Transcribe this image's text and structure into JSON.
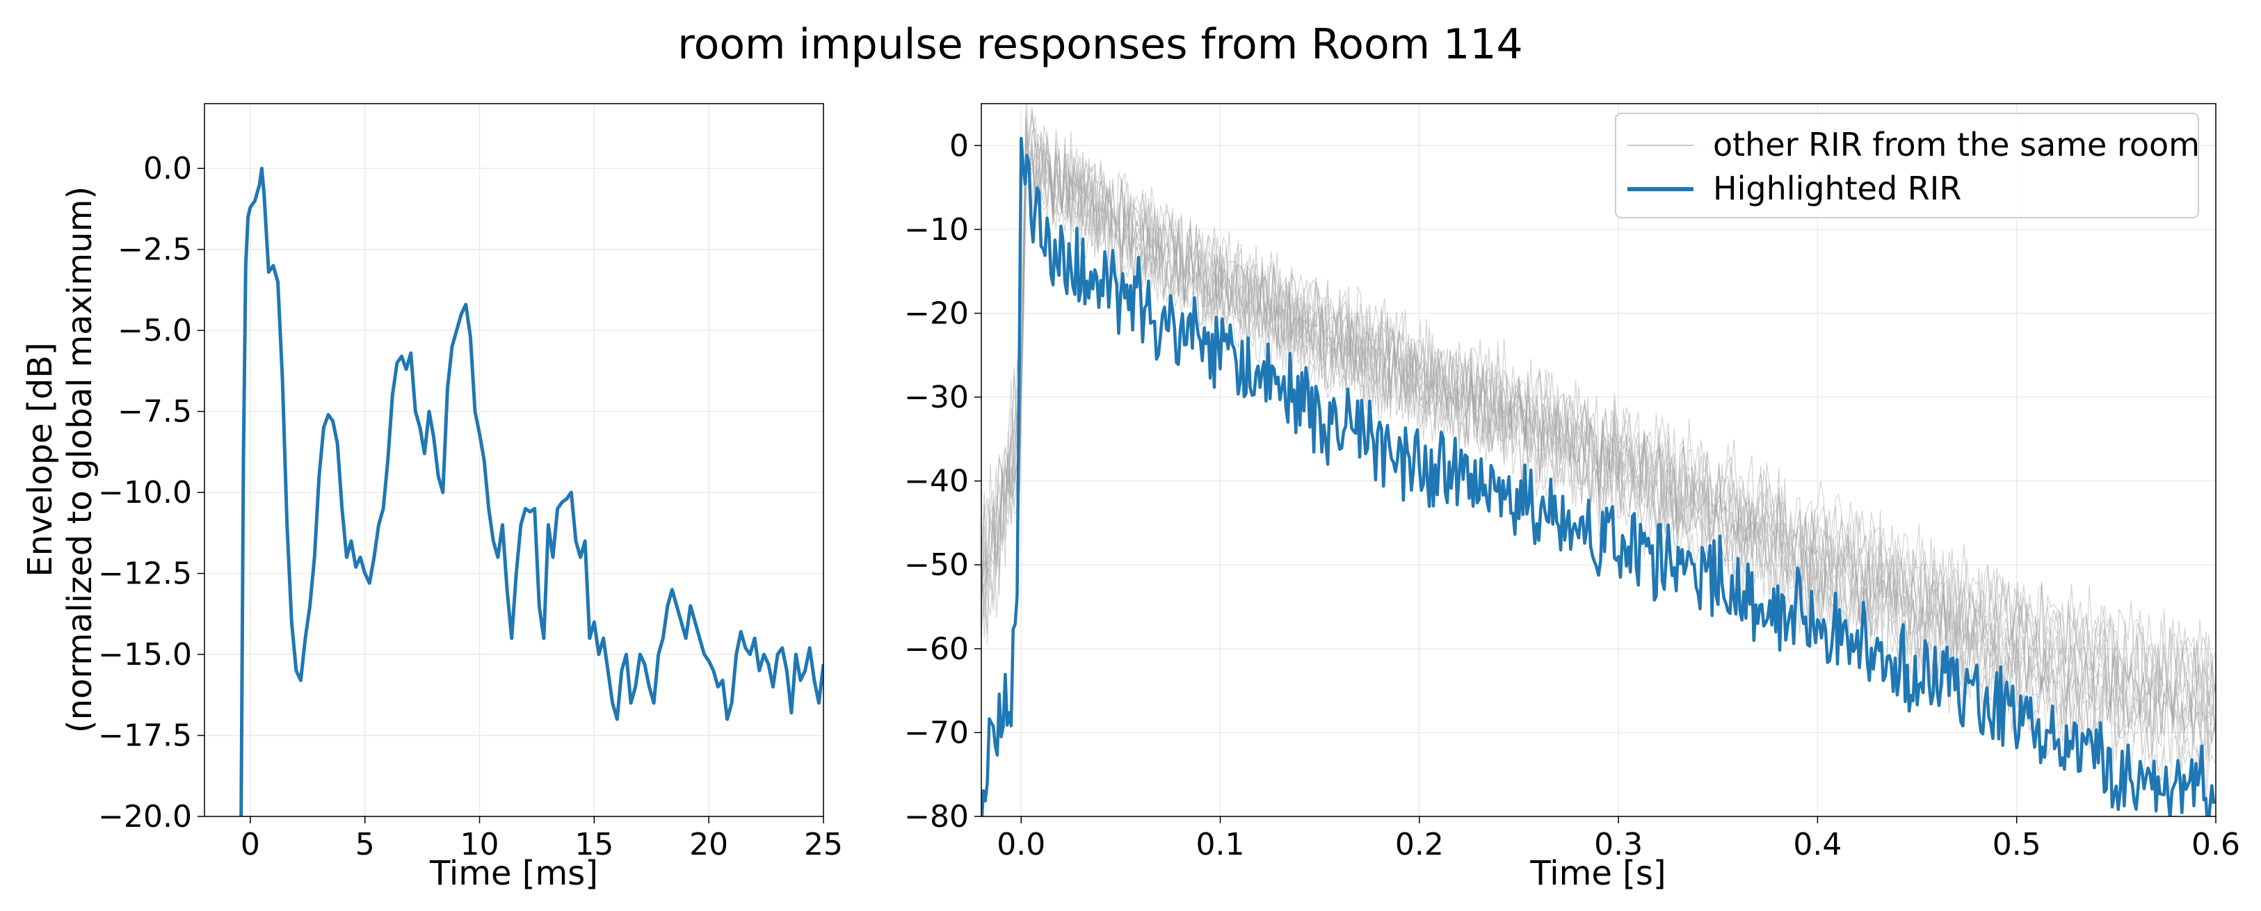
{
  "figure": {
    "title": "room impulse responses from Room 114"
  },
  "colors": {
    "highlight": "#1f77b4",
    "other": "#a0a0a0",
    "grid": "#ebebeb",
    "axes": "#000000"
  },
  "chart_data": [
    {
      "type": "line",
      "panel": "left",
      "title": "",
      "xlabel": "Time [ms]",
      "ylabel": [
        "Envelope [dB]",
        "(normalized to global maximum)"
      ],
      "xlim": [
        -2,
        25
      ],
      "ylim": [
        -20,
        2
      ],
      "grid": true,
      "xticks": [
        0,
        5,
        10,
        15,
        20,
        25
      ],
      "xtick_labels": [
        "0",
        "5",
        "10",
        "15",
        "20",
        "25"
      ],
      "yticks": [
        0,
        -2.5,
        -5,
        -7.5,
        -10,
        -12.5,
        -15,
        -17.5,
        -20
      ],
      "ytick_labels": [
        "0.0",
        "−2.5",
        "−5.0",
        "−7.5",
        "−10.0",
        "−12.5",
        "−15.0",
        "−17.5",
        "−20.0"
      ],
      "series": [
        {
          "color": "#1f77b4",
          "x": [
            -0.4,
            -0.3,
            -0.2,
            -0.1,
            0.0,
            0.2,
            0.4,
            0.5,
            0.6,
            0.8,
            1.0,
            1.2,
            1.4,
            1.6,
            1.8,
            2.0,
            2.2,
            2.4,
            2.6,
            2.8,
            3.0,
            3.2,
            3.4,
            3.6,
            3.8,
            4.0,
            4.2,
            4.4,
            4.6,
            4.8,
            5.0,
            5.2,
            5.4,
            5.6,
            5.8,
            6.0,
            6.2,
            6.4,
            6.6,
            6.8,
            7.0,
            7.2,
            7.4,
            7.6,
            7.8,
            8.0,
            8.2,
            8.4,
            8.6,
            8.8,
            9.0,
            9.2,
            9.4,
            9.6,
            9.8,
            10.0,
            10.2,
            10.4,
            10.6,
            10.8,
            11.0,
            11.2,
            11.4,
            11.6,
            11.8,
            12.0,
            12.2,
            12.4,
            12.6,
            12.8,
            13.0,
            13.2,
            13.4,
            13.6,
            13.8,
            14.0,
            14.2,
            14.4,
            14.6,
            14.8,
            15.0,
            15.2,
            15.4,
            15.6,
            15.8,
            16.0,
            16.2,
            16.4,
            16.6,
            16.8,
            17.0,
            17.2,
            17.4,
            17.6,
            17.8,
            18.0,
            18.2,
            18.4,
            18.6,
            18.8,
            19.0,
            19.2,
            19.4,
            19.6,
            19.8,
            20.0,
            20.2,
            20.4,
            20.6,
            20.8,
            21.0,
            21.2,
            21.4,
            21.6,
            21.8,
            22.0,
            22.2,
            22.4,
            22.6,
            22.8,
            23.0,
            23.2,
            23.4,
            23.6,
            23.8,
            24.0,
            24.2,
            24.4,
            24.6,
            24.8,
            25.0
          ],
          "y": [
            -20,
            -9.0,
            -3.0,
            -1.5,
            -1.2,
            -1.0,
            -0.5,
            0.0,
            -0.8,
            -3.2,
            -3.0,
            -3.5,
            -6.5,
            -11.0,
            -14.0,
            -15.5,
            -15.8,
            -14.5,
            -13.5,
            -12.0,
            -9.5,
            -8.0,
            -7.6,
            -7.8,
            -8.5,
            -10.5,
            -12.0,
            -11.5,
            -12.3,
            -12.0,
            -12.5,
            -12.8,
            -12.0,
            -11.0,
            -10.5,
            -9.0,
            -7.0,
            -6.0,
            -5.8,
            -6.2,
            -5.7,
            -7.5,
            -8.0,
            -8.8,
            -7.5,
            -8.3,
            -9.5,
            -10.0,
            -6.8,
            -5.5,
            -5.0,
            -4.5,
            -4.2,
            -5.2,
            -7.5,
            -8.2,
            -9.0,
            -10.5,
            -11.5,
            -12.0,
            -11.0,
            -13.0,
            -14.5,
            -12.5,
            -11.0,
            -10.5,
            -10.6,
            -10.5,
            -13.5,
            -14.5,
            -11.0,
            -12.0,
            -10.5,
            -10.3,
            -10.2,
            -10.0,
            -11.5,
            -12.0,
            -11.5,
            -14.5,
            -14.0,
            -15.0,
            -14.5,
            -15.5,
            -16.5,
            -17.0,
            -15.5,
            -15.0,
            -16.5,
            -16.0,
            -15.0,
            -15.3,
            -16.0,
            -16.5,
            -15.0,
            -14.5,
            -13.5,
            -13.0,
            -13.5,
            -14.0,
            -14.5,
            -13.5,
            -14.0,
            -14.5,
            -15.0,
            -15.2,
            -15.5,
            -16.0,
            -15.8,
            -17.0,
            -16.5,
            -15.0,
            -14.3,
            -14.8,
            -15.0,
            -14.5,
            -15.5,
            -15.0,
            -15.3,
            -16.0,
            -15.0,
            -14.8,
            -15.5,
            -16.8,
            -15.0,
            -15.8,
            -15.5,
            -14.8,
            -15.8,
            -16.5,
            -15.3
          ]
        }
      ]
    },
    {
      "type": "line",
      "panel": "right",
      "title": "",
      "xlabel": "Time [s]",
      "ylabel": "",
      "xlim": [
        -0.02,
        0.6
      ],
      "ylim": [
        -80,
        5
      ],
      "grid": true,
      "legend_position": "top-right",
      "xticks": [
        0.0,
        0.1,
        0.2,
        0.3,
        0.4,
        0.5,
        0.6
      ],
      "xtick_labels": [
        "0.0",
        "0.1",
        "0.2",
        "0.3",
        "0.4",
        "0.5",
        "0.6"
      ],
      "yticks": [
        0,
        -10,
        -20,
        -30,
        -40,
        -50,
        -60,
        -70,
        -80
      ],
      "ytick_labels": [
        "0",
        "−10",
        "−20",
        "−30",
        "−40",
        "−50",
        "−60",
        "−70",
        "−80"
      ],
      "decay_rate_db_per_s": 126,
      "series": [
        {
          "name": "other RIR from the same room",
          "color": "#a0a0a0",
          "x": [
            -0.02,
            0.0,
            0.002,
            0.01,
            0.05,
            0.1,
            0.2,
            0.3,
            0.4,
            0.5,
            0.6
          ],
          "y": [
            -55,
            -35,
            -2,
            -5,
            -12,
            -19,
            -30,
            -40,
            -52,
            -63,
            -70
          ]
        },
        {
          "name": "Highlighted RIR",
          "color": "#1f77b4",
          "x": [
            -0.02,
            -0.015,
            -0.01,
            -0.005,
            -0.002,
            0.0,
            0.002,
            0.01,
            0.02,
            0.05,
            0.1,
            0.15,
            0.2,
            0.25,
            0.3,
            0.35,
            0.4,
            0.45,
            0.5,
            0.55,
            0.6
          ],
          "y": [
            -78,
            -72,
            -70,
            -65,
            -55,
            0,
            -3,
            -10,
            -14,
            -18,
            -25,
            -32,
            -38,
            -43,
            -48,
            -52,
            -57,
            -63,
            -68,
            -75,
            -77
          ]
        }
      ]
    }
  ]
}
